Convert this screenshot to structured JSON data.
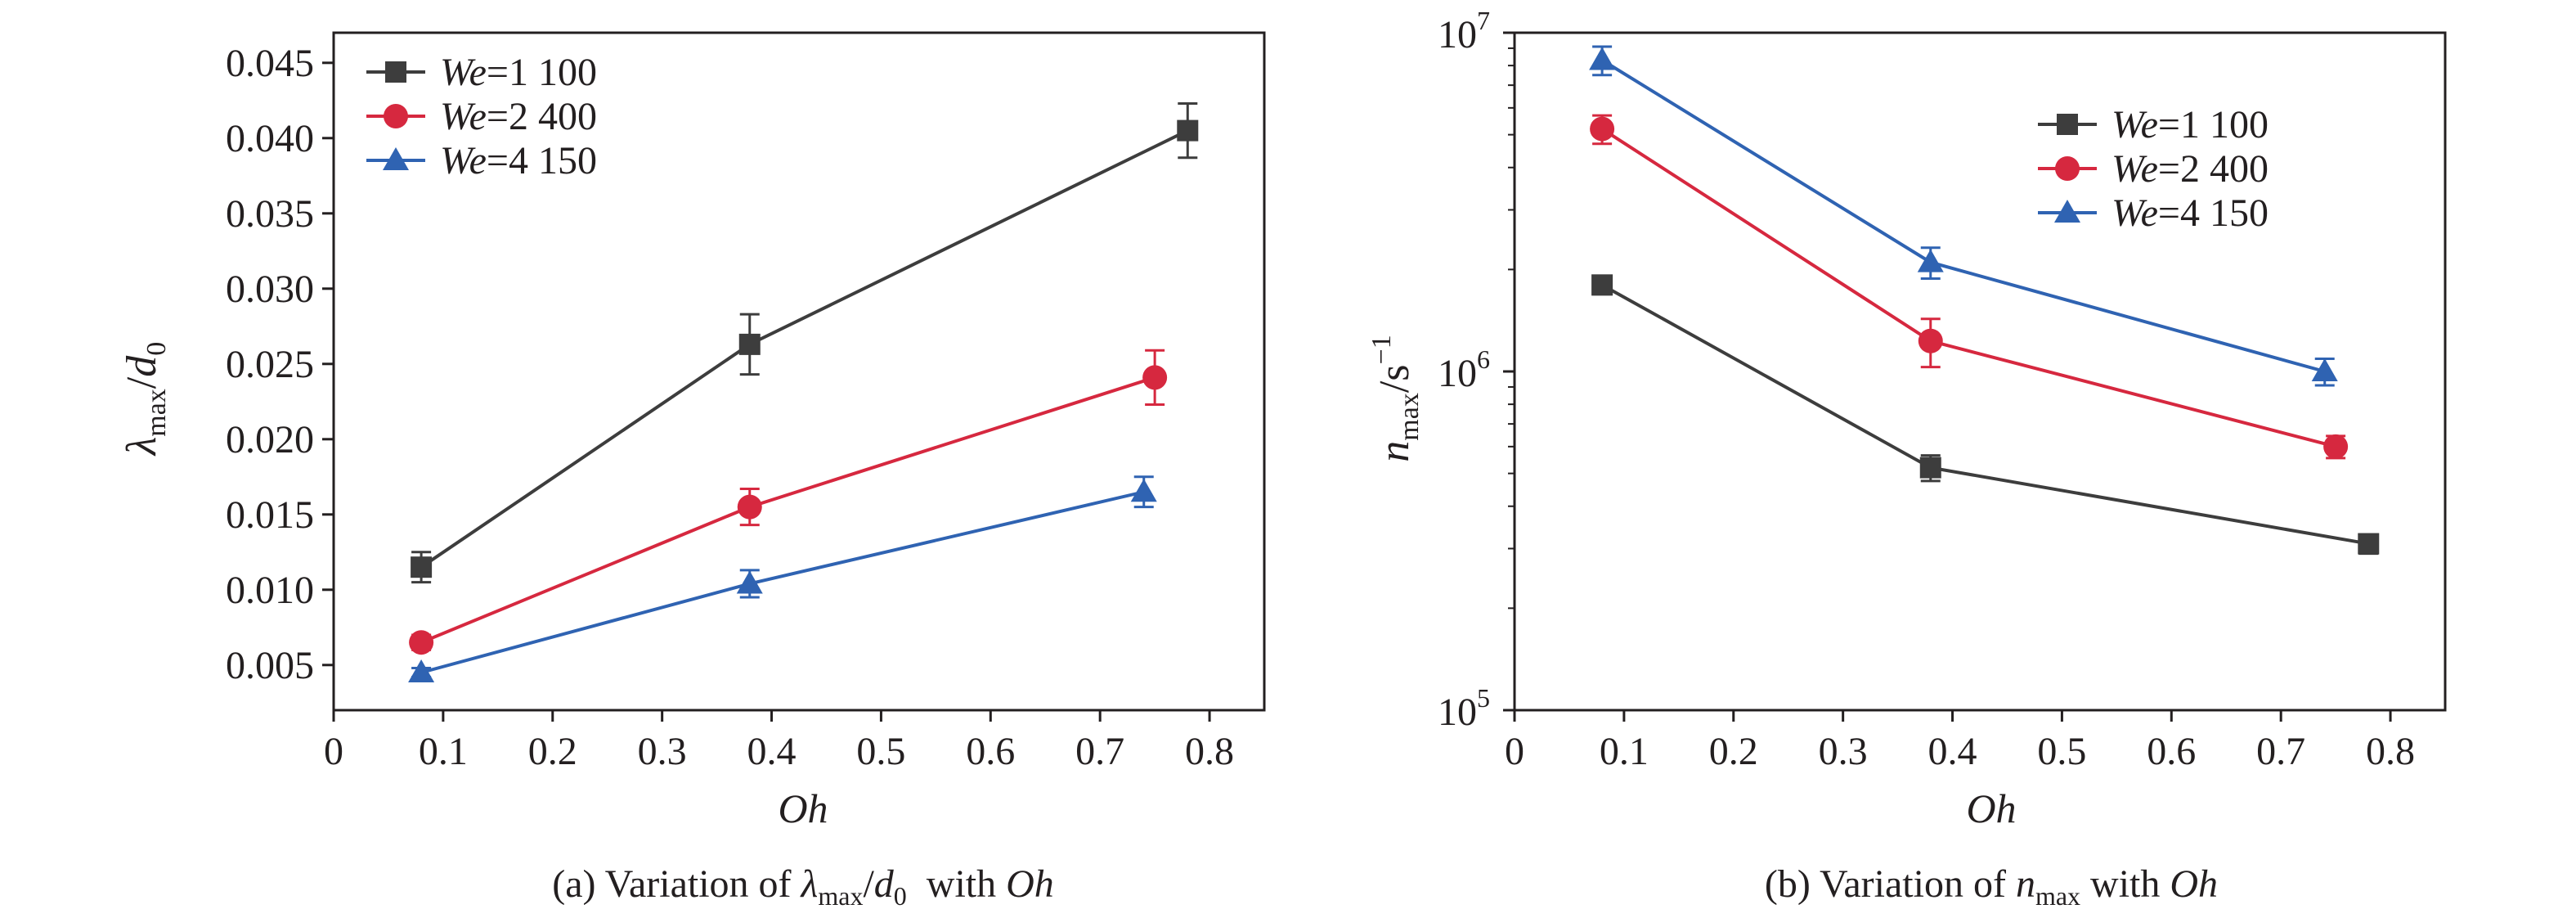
{
  "chart_data": [
    {
      "type": "line",
      "caption": {
        "prefix": "(a) Variation of ",
        "sym1": "λ",
        "sym1_sub": "max",
        "slash": "/",
        "sym2": "d",
        "sym2_sub": "0",
        "mid": "  with ",
        "var": "Oh"
      },
      "xlabel": "Oh",
      "ylabel": {
        "sym1": "λ",
        "sub1": "max",
        "slash": "/",
        "sym2": "d",
        "sub2": "0"
      },
      "xlim": [
        0,
        0.85
      ],
      "ylim": [
        0.002,
        0.047
      ],
      "xticks": [
        0,
        0.1,
        0.2,
        0.3,
        0.4,
        0.5,
        0.6,
        0.7,
        0.8
      ],
      "xtick_labels": [
        "0",
        "0.1",
        "0.2",
        "0.3",
        "0.4",
        "0.5",
        "0.6",
        "0.7",
        "0.8"
      ],
      "yticks": [
        0.005,
        0.01,
        0.015,
        0.02,
        0.025,
        0.03,
        0.035,
        0.04,
        0.045
      ],
      "ytick_labels": [
        "0.005",
        "0.010",
        "0.015",
        "0.020",
        "0.025",
        "0.030",
        "0.035",
        "0.040",
        "0.045"
      ],
      "yscale": "linear",
      "legend_position": "top-left",
      "series": [
        {
          "name_var": "We",
          "name_value": "=1 100",
          "color": "#3d3d3d",
          "marker": "square",
          "x": [
            0.08,
            0.38,
            0.78
          ],
          "y": [
            0.0115,
            0.0263,
            0.0405
          ],
          "err": [
            0.001,
            0.002,
            0.0018
          ]
        },
        {
          "name_var": "We",
          "name_value": "=2 400",
          "color": "#d6283f",
          "marker": "circle",
          "x": [
            0.08,
            0.38,
            0.75
          ],
          "y": [
            0.0065,
            0.0155,
            0.0241
          ],
          "err": [
            0.0005,
            0.0012,
            0.0018
          ]
        },
        {
          "name_var": "We",
          "name_value": "=4 150",
          "color": "#2f63b2",
          "marker": "triangle",
          "x": [
            0.08,
            0.38,
            0.74
          ],
          "y": [
            0.0045,
            0.0104,
            0.0165
          ],
          "err": [
            0.0003,
            0.0009,
            0.001
          ]
        }
      ]
    },
    {
      "type": "line",
      "caption": {
        "prefix": "(b) Variation of ",
        "sym1": "n",
        "sym1_sub": "max",
        "mid": " with ",
        "var": "Oh"
      },
      "xlabel": "Oh",
      "ylabel": {
        "sym1": "n",
        "sub1": "max",
        "slash": "/s",
        "sup": "−1"
      },
      "xlim": [
        0,
        0.85
      ],
      "ylim": [
        100000,
        10000000
      ],
      "xticks": [
        0,
        0.1,
        0.2,
        0.3,
        0.4,
        0.5,
        0.6,
        0.7,
        0.8
      ],
      "xtick_labels": [
        "0",
        "0.1",
        "0.2",
        "0.3",
        "0.4",
        "0.5",
        "0.6",
        "0.7",
        "0.8"
      ],
      "yticks": [
        100000,
        1000000,
        10000000
      ],
      "ytick_labels": [
        {
          "base": "10",
          "exp": "5"
        },
        {
          "base": "10",
          "exp": "6"
        },
        {
          "base": "10",
          "exp": "7"
        }
      ],
      "yscale": "log",
      "legend_position": "top-right",
      "series": [
        {
          "name_var": "We",
          "name_value": "=1 100",
          "color": "#3d3d3d",
          "marker": "square",
          "x": [
            0.08,
            0.38,
            0.78
          ],
          "y": [
            1800000,
            520000,
            310000
          ],
          "err": [
            110000,
            45000,
            20000
          ]
        },
        {
          "name_var": "We",
          "name_value": "=2 400",
          "color": "#d6283f",
          "marker": "circle",
          "x": [
            0.08,
            0.38,
            0.75
          ],
          "y": [
            5200000,
            1230000,
            600000
          ],
          "err": [
            500000,
            200000,
            45000
          ]
        },
        {
          "name_var": "We",
          "name_value": "=4 150",
          "color": "#2f63b2",
          "marker": "triangle",
          "x": [
            0.08,
            0.38,
            0.74
          ],
          "y": [
            8300000,
            2100000,
            1000000
          ],
          "err": [
            800000,
            220000,
            90000
          ]
        }
      ]
    }
  ]
}
